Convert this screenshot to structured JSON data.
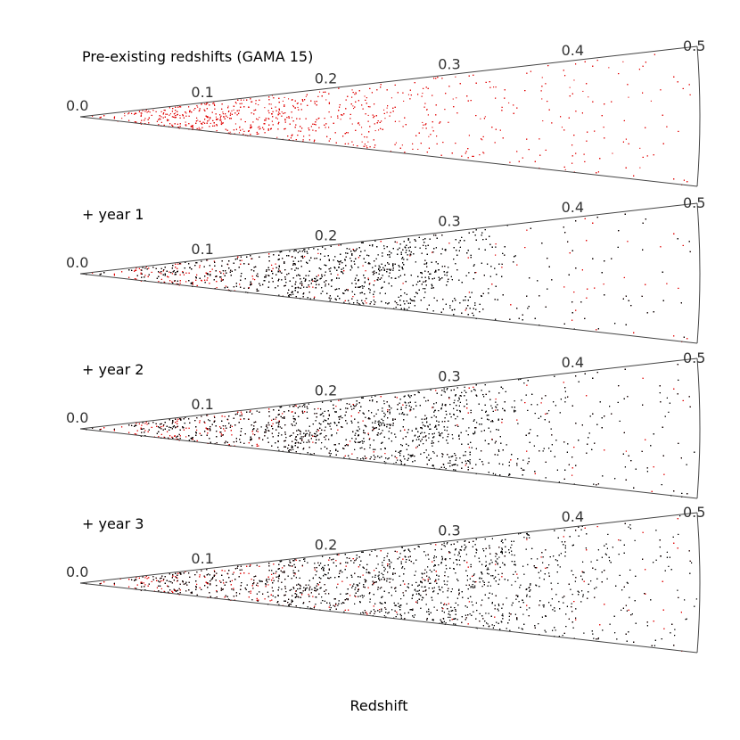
{
  "chart_data": {
    "type": "scatter",
    "geometry": "redshift-cone",
    "xlabel": "Redshift",
    "ticks": [
      0.0,
      0.1,
      0.2,
      0.3,
      0.4,
      0.5
    ],
    "tick_labels": [
      "0.0",
      "0.1",
      "0.2",
      "0.3",
      "0.4",
      "0.5"
    ],
    "xlim": [
      0,
      0.5
    ],
    "colors": {
      "pre_existing": "#e00000",
      "new": "#000000",
      "axis": "#444444"
    },
    "panels": [
      {
        "title": "Pre-existing redshifts (GAMA 15)",
        "series": [
          {
            "kind": "pre-existing",
            "color": "#e00000",
            "density_by_redshift": [
              [
                0.02,
                0.5
              ],
              [
                0.06,
                0.9
              ],
              [
                0.1,
                1.0
              ],
              [
                0.15,
                0.85
              ],
              [
                0.2,
                0.35
              ],
              [
                0.3,
                0.12
              ],
              [
                0.4,
                0.06
              ],
              [
                0.5,
                0.03
              ]
            ]
          }
        ]
      },
      {
        "title": "+ year 1",
        "series": [
          {
            "kind": "pre-existing",
            "color": "#e00000",
            "density_by_redshift": [
              [
                0.02,
                0.5
              ],
              [
                0.06,
                0.9
              ],
              [
                0.1,
                1.0
              ],
              [
                0.15,
                0.85
              ],
              [
                0.2,
                0.35
              ],
              [
                0.3,
                0.12
              ],
              [
                0.4,
                0.06
              ],
              [
                0.5,
                0.03
              ]
            ]
          },
          {
            "kind": "new",
            "color": "#000000",
            "density_by_redshift": [
              [
                0.02,
                0.3
              ],
              [
                0.08,
                0.6
              ],
              [
                0.14,
                0.85
              ],
              [
                0.2,
                1.0
              ],
              [
                0.25,
                0.8
              ],
              [
                0.3,
                0.4
              ],
              [
                0.35,
                0.12
              ],
              [
                0.4,
                0.05
              ],
              [
                0.5,
                0.02
              ]
            ]
          }
        ]
      },
      {
        "title": "+ year 2",
        "series": [
          {
            "kind": "pre-existing",
            "color": "#e00000",
            "density_by_redshift": [
              [
                0.02,
                0.5
              ],
              [
                0.06,
                0.9
              ],
              [
                0.1,
                1.0
              ],
              [
                0.15,
                0.85
              ],
              [
                0.2,
                0.35
              ],
              [
                0.3,
                0.12
              ],
              [
                0.4,
                0.06
              ],
              [
                0.5,
                0.03
              ]
            ]
          },
          {
            "kind": "new",
            "color": "#000000",
            "density_by_redshift": [
              [
                0.02,
                0.4
              ],
              [
                0.08,
                0.75
              ],
              [
                0.14,
                0.95
              ],
              [
                0.2,
                1.0
              ],
              [
                0.26,
                0.95
              ],
              [
                0.3,
                0.8
              ],
              [
                0.35,
                0.35
              ],
              [
                0.4,
                0.12
              ],
              [
                0.5,
                0.04
              ]
            ]
          }
        ]
      },
      {
        "title": "+ year 3",
        "series": [
          {
            "kind": "pre-existing",
            "color": "#e00000",
            "density_by_redshift": [
              [
                0.02,
                0.5
              ],
              [
                0.06,
                0.9
              ],
              [
                0.1,
                1.0
              ],
              [
                0.15,
                0.85
              ],
              [
                0.2,
                0.35
              ],
              [
                0.3,
                0.12
              ],
              [
                0.4,
                0.06
              ],
              [
                0.5,
                0.03
              ]
            ]
          },
          {
            "kind": "new",
            "color": "#000000",
            "density_by_redshift": [
              [
                0.02,
                0.5
              ],
              [
                0.08,
                0.9
              ],
              [
                0.14,
                1.0
              ],
              [
                0.2,
                1.0
              ],
              [
                0.26,
                0.95
              ],
              [
                0.3,
                0.9
              ],
              [
                0.35,
                0.7
              ],
              [
                0.4,
                0.35
              ],
              [
                0.45,
                0.15
              ],
              [
                0.5,
                0.06
              ]
            ]
          }
        ]
      }
    ]
  }
}
